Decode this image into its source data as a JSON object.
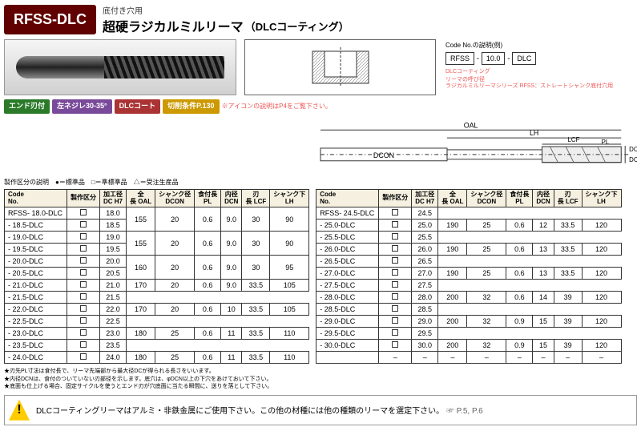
{
  "header": {
    "code": "RFSS-DLC",
    "subtitle": "底付き穴用",
    "title": "超硬ラジカルミルリーマ",
    "dlc": "DLCコーティング"
  },
  "codeLegend": {
    "title": "Code No.の説明(例)",
    "parts": [
      "RFSS",
      "10.0",
      "DLC"
    ],
    "notes": [
      "DLCコーティング",
      "リーマの呼び径",
      "ラジカルミルリーマシリーズ RFSS：ストレートシャンク底付穴用"
    ]
  },
  "tags": {
    "t1": "エンド刃付",
    "t2": "左ネジレ30-35°",
    "t3": "DLCコート",
    "t4": "切削条件P.130",
    "note": "※アイコンの説明はP4をご覧下さい。"
  },
  "dimLabels": {
    "oal": "OAL",
    "lh": "LH",
    "lcf": "LCF",
    "pl": "PL",
    "dcon": "DCON",
    "dcn": "DCN",
    "dc": "DC"
  },
  "legendRow": "製作区分の説明　●＝標準品　□＝準標準品　△＝受注生産品",
  "cols": [
    "Code No.",
    "製作区分",
    "加工径 DC H7",
    "全 長 OAL",
    "シャンク径 DCON",
    "食付長 PL",
    "内径 DCN",
    "刃 長 LCF",
    "シャンク下 LH"
  ],
  "rows1": [
    [
      "RFSS- 18.0-DLC",
      "18.0",
      "155",
      "20",
      "0.6",
      "9.0",
      "30",
      "90"
    ],
    [
      "- 18.5-DLC",
      "18.5"
    ],
    [
      "- 19.0-DLC",
      "19.0",
      "155",
      "20",
      "0.6",
      "9.0",
      "30",
      "90"
    ],
    [
      "- 19.5-DLC",
      "19.5"
    ],
    [
      "- 20.0-DLC",
      "20.0",
      "160",
      "20",
      "0.6",
      "9.0",
      "30",
      "95"
    ],
    [
      "- 20.5-DLC",
      "20.5"
    ],
    [
      "- 21.0-DLC",
      "21.0",
      "170",
      "20",
      "0.6",
      "9.0",
      "33.5",
      "105"
    ],
    [
      "- 21.5-DLC",
      "21.5"
    ],
    [
      "- 22.0-DLC",
      "22.0",
      "170",
      "20",
      "0.6",
      "10",
      "33.5",
      "105"
    ],
    [
      "- 22.5-DLC",
      "22.5"
    ],
    [
      "- 23.0-DLC",
      "23.0",
      "180",
      "25",
      "0.6",
      "11",
      "33.5",
      "110"
    ],
    [
      "- 23.5-DLC",
      "23.5"
    ],
    [
      "- 24.0-DLC",
      "24.0",
      "180",
      "25",
      "0.6",
      "11",
      "33.5",
      "110"
    ]
  ],
  "rows2": [
    [
      "RFSS- 24.5-DLC",
      "24.5"
    ],
    [
      "- 25.0-DLC",
      "25.0",
      "190",
      "25",
      "0.6",
      "12",
      "33.5",
      "120"
    ],
    [
      "- 25.5-DLC",
      "25.5"
    ],
    [
      "- 26.0-DLC",
      "26.0",
      "190",
      "25",
      "0.6",
      "13",
      "33.5",
      "120"
    ],
    [
      "- 26.5-DLC",
      "26.5"
    ],
    [
      "- 27.0-DLC",
      "27.0",
      "190",
      "25",
      "0.6",
      "13",
      "33.5",
      "120"
    ],
    [
      "- 27.5-DLC",
      "27.5"
    ],
    [
      "- 28.0-DLC",
      "28.0",
      "200",
      "32",
      "0.6",
      "14",
      "39",
      "120"
    ],
    [
      "- 28.5-DLC",
      "28.5"
    ],
    [
      "- 29.0-DLC",
      "29.0",
      "200",
      "32",
      "0.9",
      "15",
      "39",
      "120"
    ],
    [
      "- 29.5-DLC",
      "29.5"
    ],
    [
      "- 30.0-DLC",
      "30.0",
      "200",
      "32",
      "0.9",
      "15",
      "39",
      "120"
    ],
    [
      "",
      "–",
      "–",
      "–",
      "–",
      "–",
      "–",
      "–",
      "–"
    ]
  ],
  "notes": [
    "★刃先PL寸法は食付長で、リーマ先端部から最大径DCが得られる長さをいいます。",
    "★内径DCNは、食付のついていない刃部径を示します。底穴は、φDCN以上の下穴をあけておいて下さい。",
    "★底面も仕上げる場合、固定サイクルを使うとエンド刃が穴底面に当たる瞬間に、送りを落として下さい。"
  ],
  "warning": {
    "text": "DLCコーティングリーマはアルミ・非鉄金属にご使用下さい。この他の材種には他の種類のリーマを選定下さい。",
    "ref": "☞ P.5, P.6"
  }
}
